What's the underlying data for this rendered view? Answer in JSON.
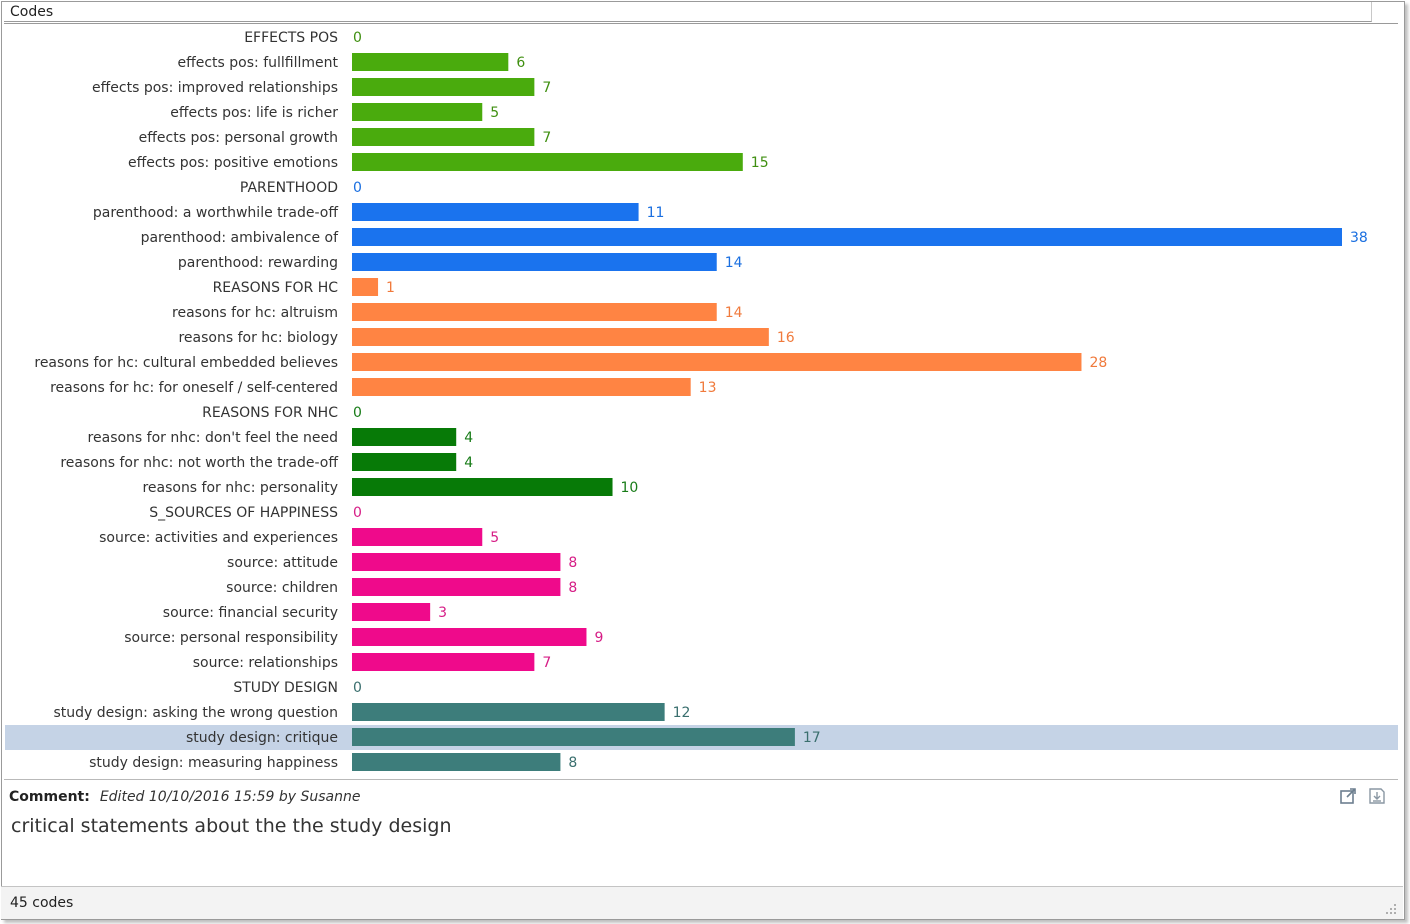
{
  "panel": {
    "title": "Codes"
  },
  "chart_data": {
    "type": "bar",
    "orientation": "horizontal",
    "title": "",
    "xlabel": "",
    "ylabel": "",
    "xlim": [
      0,
      38
    ],
    "grid": false,
    "legend": "none",
    "selected_index": 28,
    "categories": [
      "EFFECTS POS",
      "effects pos: fullfillment",
      "effects pos: improved relationships",
      "effects pos: life is richer",
      "effects pos: personal growth",
      "effects pos: positive emotions",
      "PARENTHOOD",
      "parenthood: a worthwhile trade-off",
      "parenthood: ambivalence of",
      "parenthood: rewarding",
      "REASONS FOR HC",
      "reasons for hc: altruism",
      "reasons for hc: biology",
      "reasons for hc: cultural embedded believes",
      "reasons for hc: for oneself / self-centered",
      "REASONS FOR NHC",
      "reasons for nhc: don't feel the need",
      "reasons for nhc: not worth the trade-off",
      "reasons for nhc: personality",
      "S_SOURCES OF HAPPINESS",
      "source: activities and experiences",
      "source: attitude",
      "source: children",
      "source: financial security",
      "source: personal responsibility",
      "source: relationships",
      "STUDY DESIGN",
      "study design: asking the wrong question",
      "study design: critique",
      "study design: measuring happiness"
    ],
    "values": [
      0,
      6,
      7,
      5,
      7,
      15,
      0,
      11,
      38,
      14,
      1,
      14,
      16,
      28,
      13,
      0,
      4,
      4,
      10,
      0,
      5,
      8,
      8,
      3,
      9,
      7,
      0,
      12,
      17,
      8
    ],
    "groups": [
      0,
      0,
      0,
      0,
      0,
      0,
      1,
      1,
      1,
      1,
      2,
      2,
      2,
      2,
      2,
      3,
      3,
      3,
      3,
      4,
      4,
      4,
      4,
      4,
      4,
      4,
      5,
      5,
      5,
      5
    ],
    "group_colors": [
      {
        "bar": "#4aab0d",
        "text": "#3f8f10"
      },
      {
        "bar": "#1a73ee",
        "text": "#1a6fe0"
      },
      {
        "bar": "#ff8443",
        "text": "#f07a3c"
      },
      {
        "bar": "#077a07",
        "text": "#187c18"
      },
      {
        "bar": "#ef0a8b",
        "text": "#d61d86"
      },
      {
        "bar": "#3d7d7b",
        "text": "#3a6f6e"
      }
    ]
  },
  "comment": {
    "label": "Comment:",
    "meta": "Edited 10/10/2016 15:59 by Susanne",
    "text": "critical statements about the the study design"
  },
  "toolbar": {
    "export_icon": "export-icon",
    "save_icon": "save-icon"
  },
  "status": {
    "count_text": "45 codes"
  }
}
